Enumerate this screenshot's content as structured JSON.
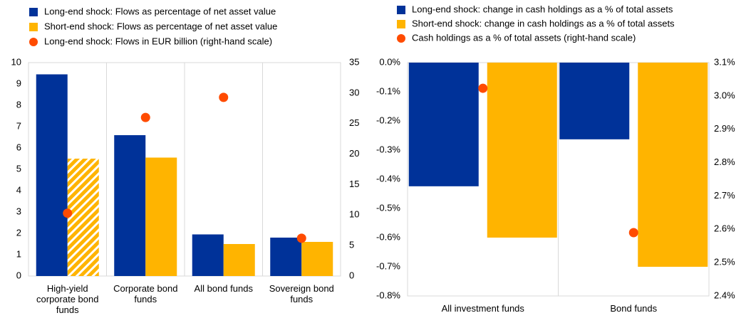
{
  "chart_data": [
    {
      "type": "bar",
      "categories": [
        "High-yield corporate bond funds",
        "Corporate bond funds",
        "All bond funds",
        "Sovereign bond funds"
      ],
      "series": [
        {
          "name": "Long-end shock:  Flows as percentage of net asset value",
          "color": "#003299",
          "values": [
            9.45,
            6.6,
            1.95,
            1.8
          ]
        },
        {
          "name": "Short-end shock:  Flows as percentage of net asset value",
          "color": "#ffb400",
          "values": [
            5.5,
            5.55,
            1.5,
            1.6
          ],
          "hatched": [
            true,
            false,
            false,
            false
          ]
        },
        {
          "name": "Long-end shock: Flows in EUR billion (right-hand scale)",
          "color": "#ff4b00",
          "values": [
            10.3,
            26,
            29.3,
            6.2
          ],
          "axis": "y2",
          "marker": "circle"
        }
      ],
      "ylim": [
        0,
        10
      ],
      "yticks": [
        0,
        1,
        2,
        3,
        4,
        5,
        6,
        7,
        8,
        9,
        10
      ],
      "y2lim": [
        0,
        35
      ],
      "y2ticks": [
        0,
        5,
        10,
        15,
        20,
        25,
        30,
        35
      ]
    },
    {
      "type": "bar",
      "categories": [
        "All investment funds",
        "Bond funds"
      ],
      "series": [
        {
          "name": "Long-end shock: change in cash holdings as a % of total assets",
          "color": "#003299",
          "values": [
            -0.424,
            -0.263
          ]
        },
        {
          "name": "Short-end shock: change in cash holdings as a % of total assets",
          "color": "#ffb400",
          "values": [
            -0.6,
            -0.7
          ]
        },
        {
          "name": "Cash holdings as a % of total assets (right-hand scale)",
          "color": "#ff4b00",
          "values": [
            3.023,
            2.59
          ],
          "axis": "y2",
          "marker": "circle"
        }
      ],
      "ylim": [
        -0.8,
        0
      ],
      "yticks": [
        {
          "value": -0.8,
          "label": "-0.8%"
        },
        {
          "value": -0.7,
          "label": "-0.7%"
        },
        {
          "value": -0.6,
          "label": "-0.6%"
        },
        {
          "value": -0.5,
          "label": "-0.5%"
        },
        {
          "value": -0.4,
          "label": "-0.4%"
        },
        {
          "value": -0.3,
          "label": "-0.3%"
        },
        {
          "value": -0.2,
          "label": "-0.2%"
        },
        {
          "value": -0.1,
          "label": "-0.1%"
        },
        {
          "value": 0,
          "label": "0.0%"
        }
      ],
      "y2lim": [
        2.4,
        3.1
      ],
      "y2ticks": [
        {
          "value": 2.4,
          "label": "2.4%"
        },
        {
          "value": 2.5,
          "label": "2.5%"
        },
        {
          "value": 2.6,
          "label": "2.6%"
        },
        {
          "value": 2.7,
          "label": "2.7%"
        },
        {
          "value": 2.8,
          "label": "2.8%"
        },
        {
          "value": 2.9,
          "label": "2.9%"
        },
        {
          "value": 3.0,
          "label": "3.0%"
        },
        {
          "value": 3.1,
          "label": "3.1%"
        }
      ]
    }
  ]
}
